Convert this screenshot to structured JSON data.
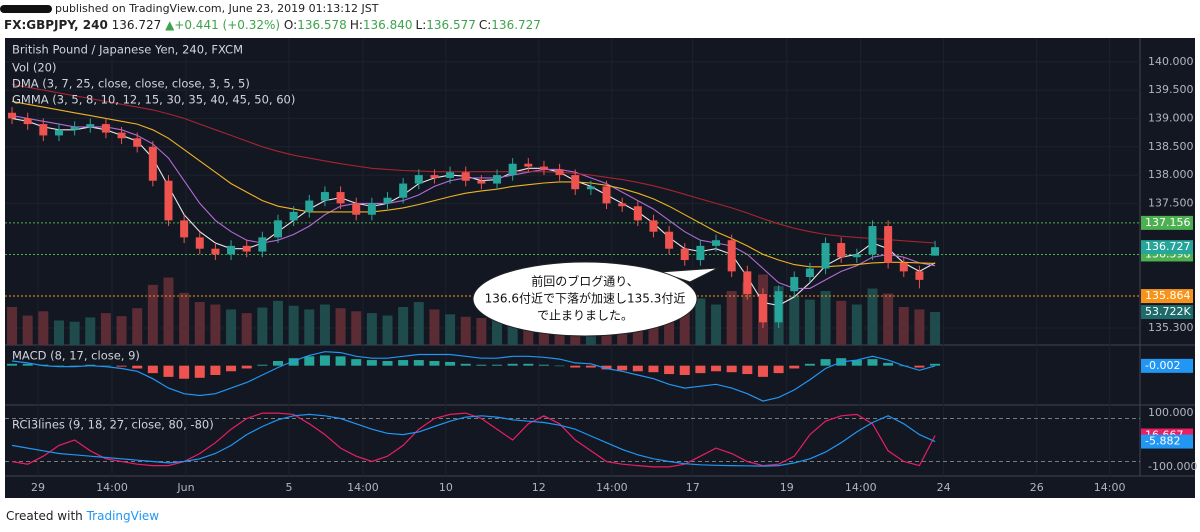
{
  "header": {
    "publisher": "published on TradingView.com, June 23, 2019 01:13:12 JST",
    "symbol": "FX:GBPJPY, 240",
    "last": "136.727",
    "change": "▲+0.441 (+0.32%)",
    "ohlc": [
      {
        "key": "O:",
        "value": "136.578"
      },
      {
        "key": "H:",
        "value": "136.840"
      },
      {
        "key": "L:",
        "value": "136.577"
      },
      {
        "key": "C:",
        "value": "136.727"
      }
    ]
  },
  "annotation": [
    "前回のブログ通り、",
    "136.6付近で下落が加速し135.3付近",
    "で止まりました。"
  ],
  "footer": {
    "created": "Created with",
    "brand": "TradingView"
  },
  "chart_data": [
    {
      "type": "candlestick",
      "title": "British Pound / Japanese Yen, 240, FXCM",
      "indicators": [
        "Vol (20)",
        "DMA (3, 7, 25, close, close, close, 3, 5, 5)",
        "GMMA (3, 5, 8, 10, 12, 15, 30, 35, 40, 45, 50, 60)"
      ],
      "open": [
        139.1,
        139.0,
        138.9,
        138.7,
        138.8,
        138.85,
        138.9,
        138.75,
        138.65,
        138.5,
        137.9,
        137.2,
        136.9,
        136.7,
        136.6,
        136.75,
        136.65,
        136.9,
        137.2,
        137.35,
        137.55,
        137.7,
        137.5,
        137.3,
        137.5,
        137.6,
        137.85,
        138.0,
        137.95,
        138.05,
        137.9,
        137.85,
        138.0,
        138.2,
        138.15,
        138.1,
        138.0,
        137.75,
        137.8,
        137.5,
        137.45,
        137.2,
        137.0,
        136.7,
        136.5,
        136.75,
        136.85,
        136.3,
        135.9,
        135.4,
        135.95,
        136.2,
        136.35,
        136.8,
        136.55,
        136.6,
        137.1,
        136.45,
        136.3,
        136.578
      ],
      "high": [
        139.2,
        139.1,
        139.0,
        138.9,
        138.95,
        139.0,
        139.0,
        138.85,
        138.75,
        138.6,
        138.0,
        137.3,
        137.0,
        136.8,
        136.85,
        136.85,
        137.0,
        137.3,
        137.45,
        137.65,
        137.8,
        137.8,
        137.6,
        137.6,
        137.7,
        137.95,
        138.1,
        138.1,
        138.15,
        138.15,
        138.0,
        138.1,
        138.3,
        138.3,
        138.25,
        138.2,
        138.1,
        137.9,
        137.9,
        137.6,
        137.55,
        137.3,
        137.1,
        136.8,
        136.85,
        136.95,
        136.95,
        136.4,
        136.0,
        136.05,
        136.3,
        136.45,
        136.9,
        136.9,
        136.7,
        137.2,
        137.2,
        136.55,
        136.4,
        136.84
      ],
      "low": [
        138.9,
        138.8,
        138.6,
        138.6,
        138.7,
        138.75,
        138.65,
        138.55,
        138.4,
        137.8,
        137.1,
        136.8,
        136.6,
        136.5,
        136.5,
        136.55,
        136.55,
        136.8,
        137.1,
        137.25,
        137.45,
        137.4,
        137.2,
        137.2,
        137.4,
        137.5,
        137.75,
        137.85,
        137.85,
        137.8,
        137.75,
        137.75,
        137.9,
        138.05,
        138.0,
        137.9,
        137.65,
        137.65,
        137.4,
        137.35,
        137.1,
        136.9,
        136.6,
        136.4,
        136.4,
        136.65,
        136.2,
        135.8,
        135.3,
        135.3,
        135.85,
        136.1,
        136.25,
        136.45,
        136.45,
        136.5,
        136.35,
        136.2,
        136.0,
        136.577
      ],
      "close": [
        139.0,
        138.9,
        138.7,
        138.8,
        138.85,
        138.9,
        138.75,
        138.65,
        138.5,
        137.9,
        137.2,
        136.9,
        136.7,
        136.6,
        136.75,
        136.65,
        136.9,
        137.2,
        137.35,
        137.55,
        137.7,
        137.5,
        137.3,
        137.5,
        137.6,
        137.85,
        138.0,
        137.95,
        138.05,
        137.9,
        137.85,
        138.0,
        138.2,
        138.15,
        138.1,
        138.0,
        137.75,
        137.8,
        137.5,
        137.45,
        137.2,
        137.0,
        136.7,
        136.5,
        136.75,
        136.85,
        136.3,
        135.9,
        135.4,
        135.95,
        136.2,
        136.35,
        136.8,
        136.55,
        136.6,
        137.1,
        136.45,
        136.3,
        136.15,
        136.727
      ],
      "up_color": "#26a69a",
      "down_color": "#ef5350",
      "volume": {
        "values": [
          62000,
          48000,
          55000,
          40000,
          38000,
          45000,
          52000,
          47000,
          60000,
          98000,
          110000,
          85000,
          70000,
          66000,
          58000,
          52000,
          61000,
          72000,
          64000,
          58000,
          66000,
          60000,
          55000,
          52000,
          48000,
          62000,
          70000,
          58000,
          50000,
          46000,
          44000,
          52000,
          63000,
          55000,
          50000,
          48000,
          60000,
          52000,
          58000,
          54000,
          62000,
          70000,
          84000,
          90000,
          76000,
          66000,
          88000,
          102000,
          115000,
          96000,
          80000,
          74000,
          88000,
          72000,
          66000,
          92000,
          84000,
          62000,
          58000,
          53722
        ],
        "lim": [
          0,
          150000
        ],
        "up_color": "#1f4b4d",
        "down_color": "#5b2c33",
        "last_label": "53.722K"
      },
      "overlays": [
        {
          "color": "#e8e8e8",
          "values": [
            139.0,
            138.95,
            138.85,
            138.8,
            138.8,
            138.85,
            138.8,
            138.7,
            138.6,
            138.3,
            137.8,
            137.3,
            137.0,
            136.8,
            136.7,
            136.7,
            136.8,
            137.0,
            137.2,
            137.4,
            137.55,
            137.6,
            137.5,
            137.45,
            137.5,
            137.65,
            137.85,
            137.95,
            138.0,
            137.98,
            137.9,
            137.92,
            138.05,
            138.12,
            138.12,
            138.05,
            137.9,
            137.8,
            137.65,
            137.5,
            137.35,
            137.15,
            136.9,
            136.7,
            136.65,
            136.7,
            136.6,
            136.2,
            135.75,
            135.7,
            135.85,
            136.1,
            136.4,
            136.55,
            136.6,
            136.8,
            136.7,
            136.45,
            136.3,
            136.45
          ]
        },
        {
          "color": "#b36bd6",
          "values": [
            139.05,
            139.0,
            138.95,
            138.9,
            138.85,
            138.85,
            138.85,
            138.8,
            138.7,
            138.55,
            138.3,
            137.9,
            137.5,
            137.2,
            137.0,
            136.85,
            136.8,
            136.85,
            136.95,
            137.1,
            137.3,
            137.45,
            137.5,
            137.5,
            137.5,
            137.55,
            137.65,
            137.8,
            137.9,
            137.95,
            137.95,
            137.95,
            138.0,
            138.05,
            138.1,
            138.1,
            138.05,
            137.95,
            137.85,
            137.7,
            137.55,
            137.4,
            137.2,
            137.0,
            136.85,
            136.8,
            136.75,
            136.6,
            136.35,
            136.1,
            136.0,
            136.0,
            136.15,
            136.3,
            136.4,
            136.55,
            136.6,
            136.55,
            136.45,
            136.4
          ]
        },
        {
          "color": "#f0b323",
          "values": [
            139.3,
            139.25,
            139.2,
            139.15,
            139.1,
            139.05,
            139.0,
            138.95,
            138.9,
            138.8,
            138.65,
            138.45,
            138.25,
            138.05,
            137.85,
            137.7,
            137.55,
            137.45,
            137.4,
            137.35,
            137.35,
            137.35,
            137.35,
            137.35,
            137.38,
            137.42,
            137.48,
            137.55,
            137.62,
            137.68,
            137.72,
            137.75,
            137.8,
            137.83,
            137.86,
            137.88,
            137.88,
            137.86,
            137.82,
            137.76,
            137.68,
            137.58,
            137.45,
            137.3,
            137.15,
            137.0,
            136.88,
            136.75,
            136.6,
            136.5,
            136.42,
            136.38,
            136.38,
            136.4,
            136.42,
            136.45,
            136.46,
            136.46,
            136.45,
            136.44
          ]
        },
        {
          "color": "#a3262f",
          "values": [
            139.6,
            139.55,
            139.5,
            139.45,
            139.4,
            139.35,
            139.3,
            139.25,
            139.2,
            139.15,
            139.08,
            139.0,
            138.9,
            138.8,
            138.7,
            138.6,
            138.5,
            138.42,
            138.35,
            138.3,
            138.25,
            138.2,
            138.16,
            138.12,
            138.1,
            138.08,
            138.07,
            138.06,
            138.06,
            138.06,
            138.06,
            138.06,
            138.06,
            138.06,
            138.06,
            138.05,
            138.03,
            138.0,
            137.96,
            137.92,
            137.87,
            137.81,
            137.74,
            137.66,
            137.58,
            137.5,
            137.42,
            137.33,
            137.23,
            137.14,
            137.06,
            137.0,
            136.95,
            136.92,
            136.9,
            136.88,
            136.86,
            136.84,
            136.82,
            136.8
          ]
        }
      ],
      "levels": [
        {
          "value": 137.156,
          "color": "#4caf50"
        },
        {
          "value": 136.598,
          "color": "#4caf50"
        },
        {
          "value": 135.864,
          "color": "#f7931a"
        }
      ],
      "xlim": [
        -0.45,
        72.1
      ],
      "ylim": [
        135.0,
        140.42
      ],
      "yticks": [
        {
          "value": 140,
          "label": "140.000"
        },
        {
          "value": 139.5,
          "label": "139.500"
        },
        {
          "value": 139,
          "label": "139.000"
        },
        {
          "value": 138.5,
          "label": "138.500"
        },
        {
          "value": 138,
          "label": "138.000"
        },
        {
          "value": 137.5,
          "label": "137.500"
        },
        {
          "value": 135.3,
          "label": "135.300"
        }
      ],
      "xticks": [
        {
          "value": 1.66,
          "label": "29"
        },
        {
          "value": 6.39,
          "label": "14:00"
        },
        {
          "value": 11.12,
          "label": "Jun"
        },
        {
          "value": 17.7,
          "label": "5"
        },
        {
          "value": 22.43,
          "label": "14:00"
        },
        {
          "value": 27.73,
          "label": "10"
        },
        {
          "value": 33.67,
          "label": "12"
        },
        {
          "value": 38.34,
          "label": "14:00"
        },
        {
          "value": 43.51,
          "label": "17"
        },
        {
          "value": 49.52,
          "label": "19"
        },
        {
          "value": 54.25,
          "label": "14:00"
        },
        {
          "value": 59.55,
          "label": "24"
        },
        {
          "value": 65.5,
          "label": "26"
        },
        {
          "value": 70.16,
          "label": "14:00"
        }
      ]
    },
    {
      "type": "macd",
      "title": "MACD (8, 17, close, 9)",
      "histogram": [
        0.02,
        0.02,
        0.01,
        0.0,
        0.0,
        0.01,
        0.0,
        -0.01,
        -0.03,
        -0.08,
        -0.12,
        -0.14,
        -0.13,
        -0.1,
        -0.06,
        -0.03,
        0.01,
        0.05,
        0.08,
        0.1,
        0.11,
        0.1,
        0.07,
        0.06,
        0.05,
        0.06,
        0.06,
        0.05,
        0.04,
        0.02,
        0.01,
        0.01,
        0.02,
        0.02,
        0.01,
        0.0,
        -0.02,
        -0.02,
        -0.04,
        -0.05,
        -0.06,
        -0.07,
        -0.09,
        -0.1,
        -0.08,
        -0.06,
        -0.07,
        -0.09,
        -0.12,
        -0.08,
        -0.03,
        0.02,
        0.07,
        0.08,
        0.06,
        0.07,
        0.03,
        0.0,
        -0.02,
        0.02
      ],
      "up_color": "#26a69a",
      "down_color": "#ef5350",
      "macd": [
        0.05,
        0.03,
        0.0,
        -0.01,
        -0.01,
        0.0,
        -0.01,
        -0.03,
        -0.06,
        -0.14,
        -0.24,
        -0.3,
        -0.32,
        -0.3,
        -0.24,
        -0.18,
        -0.1,
        -0.02,
        0.05,
        0.11,
        0.15,
        0.14,
        0.1,
        0.08,
        0.08,
        0.1,
        0.12,
        0.12,
        0.12,
        0.1,
        0.08,
        0.08,
        0.1,
        0.1,
        0.09,
        0.07,
        0.03,
        0.02,
        -0.03,
        -0.06,
        -0.1,
        -0.14,
        -0.2,
        -0.24,
        -0.22,
        -0.2,
        -0.24,
        -0.3,
        -0.38,
        -0.34,
        -0.26,
        -0.15,
        -0.03,
        0.04,
        0.06,
        0.1,
        0.06,
        0.0,
        -0.05,
        -0.002
      ],
      "line_color": "#2196f3",
      "ylim": [
        -0.4,
        0.2
      ]
    },
    {
      "type": "rci",
      "title": "RCI3lines (9, 18, 27, close, 80, -80)",
      "series": [
        {
          "color": "#e91e63",
          "values": [
            -80,
            -90,
            -60,
            -20,
            0,
            -40,
            -70,
            -80,
            -90,
            -95,
            -95,
            -80,
            -50,
            -10,
            40,
            80,
            100,
            100,
            95,
            60,
            20,
            -30,
            -60,
            -80,
            -60,
            -20,
            40,
            80,
            95,
            100,
            80,
            40,
            0,
            60,
            90,
            60,
            0,
            -40,
            -80,
            -90,
            -95,
            -100,
            -100,
            -90,
            -60,
            -30,
            -50,
            -80,
            -95,
            -90,
            -60,
            20,
            70,
            90,
            95,
            60,
            -40,
            -80,
            -95,
            16.667
          ]
        },
        {
          "color": "#2196f3",
          "values": [
            -20,
            -30,
            -40,
            -50,
            -55,
            -60,
            -65,
            -70,
            -75,
            -80,
            -85,
            -80,
            -70,
            -50,
            -20,
            20,
            50,
            75,
            90,
            95,
            90,
            80,
            60,
            40,
            25,
            20,
            30,
            50,
            70,
            85,
            90,
            85,
            75,
            70,
            65,
            55,
            40,
            15,
            -10,
            -35,
            -55,
            -70,
            -80,
            -88,
            -92,
            -94,
            -95,
            -96,
            -97,
            -95,
            -85,
            -70,
            -45,
            -10,
            30,
            65,
            90,
            60,
            20,
            -5.882
          ]
        }
      ],
      "levels": [
        80,
        -80
      ],
      "ylim": [
        -130,
        130
      ],
      "yticks": [
        {
          "value": 100,
          "label": "100.000"
        },
        {
          "value": -100,
          "label": "-100.000"
        }
      ]
    }
  ]
}
